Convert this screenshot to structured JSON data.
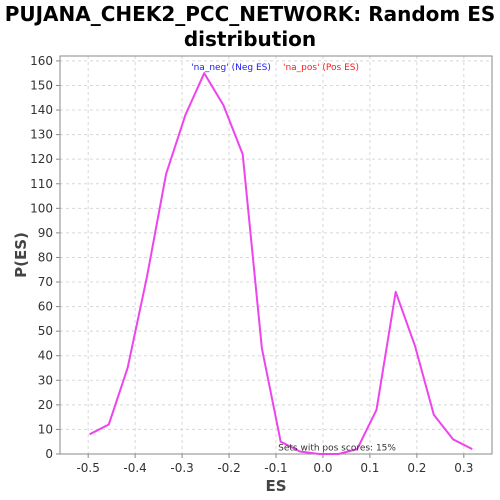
{
  "chart_data": {
    "type": "line",
    "title": "PUJANA_CHEK2_PCC_NETWORK: Random ES distribution",
    "xlabel": "ES",
    "ylabel": "P(ES)",
    "xlim": [
      -0.56,
      0.36
    ],
    "ylim": [
      0,
      162
    ],
    "xticks": [
      -0.5,
      -0.4,
      -0.3,
      -0.2,
      -0.1,
      0.0,
      0.1,
      0.2,
      0.3
    ],
    "xtick_labels": [
      "-0.5",
      "-0.4",
      "-0.3",
      "-0.2",
      "-0.1",
      "0.0",
      "0.1",
      "0.2",
      "0.3"
    ],
    "yticks": [
      0,
      10,
      20,
      30,
      40,
      50,
      60,
      70,
      80,
      90,
      100,
      110,
      120,
      130,
      140,
      150,
      160
    ],
    "grid": true,
    "legend": {
      "placement": "top-center",
      "entries": [
        {
          "label": "'na_neg' (Neg ES)",
          "color": "#1a1aff"
        },
        {
          "label": "'na_pos' (Pos ES)",
          "color": "#ff1a1a"
        }
      ]
    },
    "annotations": [
      {
        "text": "Sets with pos scores: 15%",
        "x": 0.03,
        "y": 1.5
      }
    ],
    "series": [
      {
        "color": "#ee44ee",
        "x": [
          -0.497,
          -0.456,
          -0.416,
          -0.375,
          -0.334,
          -0.293,
          -0.253,
          -0.212,
          -0.171,
          -0.13,
          -0.09,
          -0.049,
          -0.008,
          0.033,
          0.073,
          0.114,
          0.155,
          0.196,
          0.236,
          0.277,
          0.318
        ],
        "y": [
          8,
          12,
          35,
          72,
          114,
          138,
          155,
          142,
          122,
          43,
          5,
          1,
          0,
          0,
          2,
          18,
          66,
          44,
          16,
          6,
          2
        ]
      }
    ]
  }
}
